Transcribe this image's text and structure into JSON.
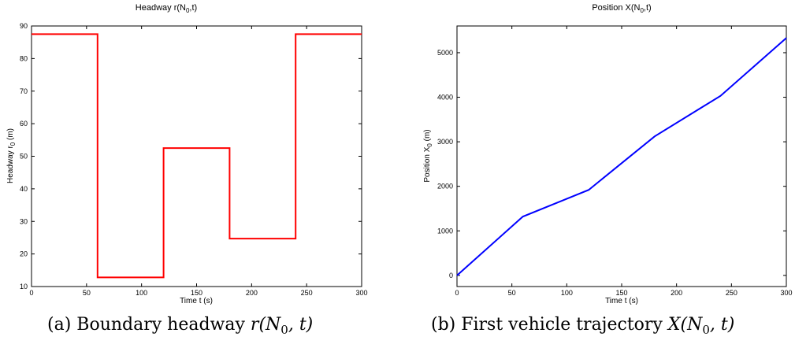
{
  "chart_data": [
    {
      "type": "line",
      "title": "Headway r(N",
      "title_sub": "0",
      "title_tail": ",t)",
      "xlabel": "Time t (s)",
      "ylabel": "Headway r",
      "ylabel_sub": "0",
      "ylabel_tail": " (m)",
      "xlim": [
        0,
        300
      ],
      "ylim": [
        10,
        90
      ],
      "xticks": [
        0,
        50,
        100,
        150,
        200,
        250,
        300
      ],
      "yticks": [
        10,
        20,
        30,
        40,
        50,
        60,
        70,
        80,
        90
      ],
      "color": "#ff0000",
      "grid": false,
      "series": [
        {
          "x": [
            0,
            60,
            60,
            120,
            120,
            180,
            180,
            240,
            240,
            300
          ],
          "y": [
            87.5,
            87.5,
            12.8,
            12.8,
            52.5,
            52.5,
            24.7,
            24.7,
            87.5,
            87.5
          ]
        }
      ]
    },
    {
      "type": "line",
      "title": "Position X(N",
      "title_sub": "0",
      "title_tail": ",t)",
      "xlabel": "Time t (s)",
      "ylabel": "Position X",
      "ylabel_sub": "0",
      "ylabel_tail": " (m)",
      "xlim": [
        0,
        300
      ],
      "ylim": [
        -250,
        5600
      ],
      "xticks": [
        0,
        50,
        100,
        150,
        200,
        250,
        300
      ],
      "yticks": [
        0,
        1000,
        2000,
        3000,
        4000,
        5000
      ],
      "color": "#0000ff",
      "grid": false,
      "series": [
        {
          "x": [
            0,
            60,
            120,
            180,
            240,
            300
          ],
          "y": [
            0,
            1320,
            1920,
            3120,
            4030,
            5330
          ]
        }
      ]
    }
  ],
  "captions": [
    {
      "prefix": "(a) Boundary headway ",
      "math": "r(N",
      "sub": "0",
      "tail": ", t)"
    },
    {
      "prefix": "(b) First vehicle trajectory ",
      "math": "X(N",
      "sub": "0",
      "tail": ", t)"
    }
  ]
}
